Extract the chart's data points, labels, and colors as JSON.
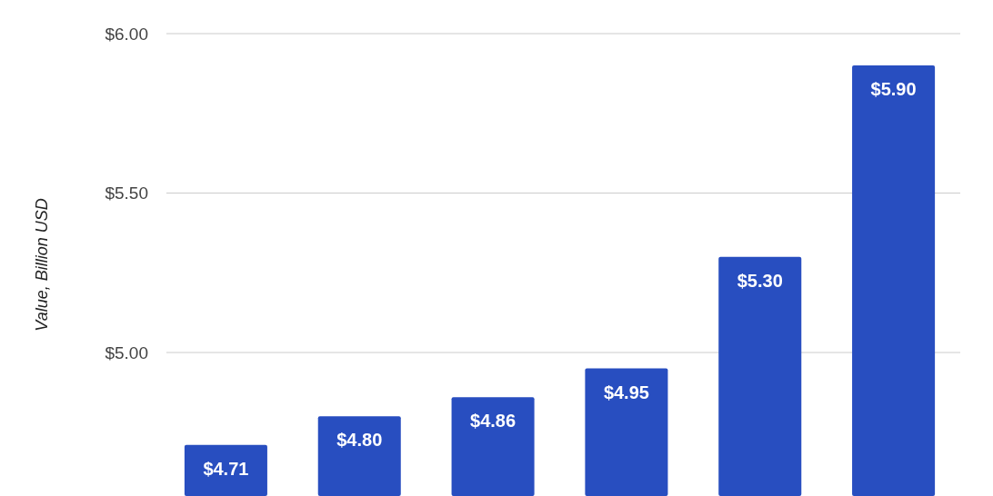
{
  "chart_data": {
    "type": "bar",
    "ylabel": "Value, Billion USD",
    "categories": [
      null,
      null,
      null,
      null,
      null,
      null
    ],
    "values": [
      4.71,
      4.8,
      4.86,
      4.95,
      5.3,
      5.9
    ],
    "value_labels": [
      "$4.71",
      "$4.80",
      "$4.86",
      "$4.95",
      "$5.30",
      "$5.90"
    ],
    "color": "#284ec0",
    "ylim": [
      4.55,
      6.0
    ],
    "yticks": [
      {
        "value": 5.0,
        "label": "$5.00"
      },
      {
        "value": 5.5,
        "label": "$5.50"
      },
      {
        "value": 6.0,
        "label": "$6.00"
      }
    ],
    "grid": "y"
  }
}
